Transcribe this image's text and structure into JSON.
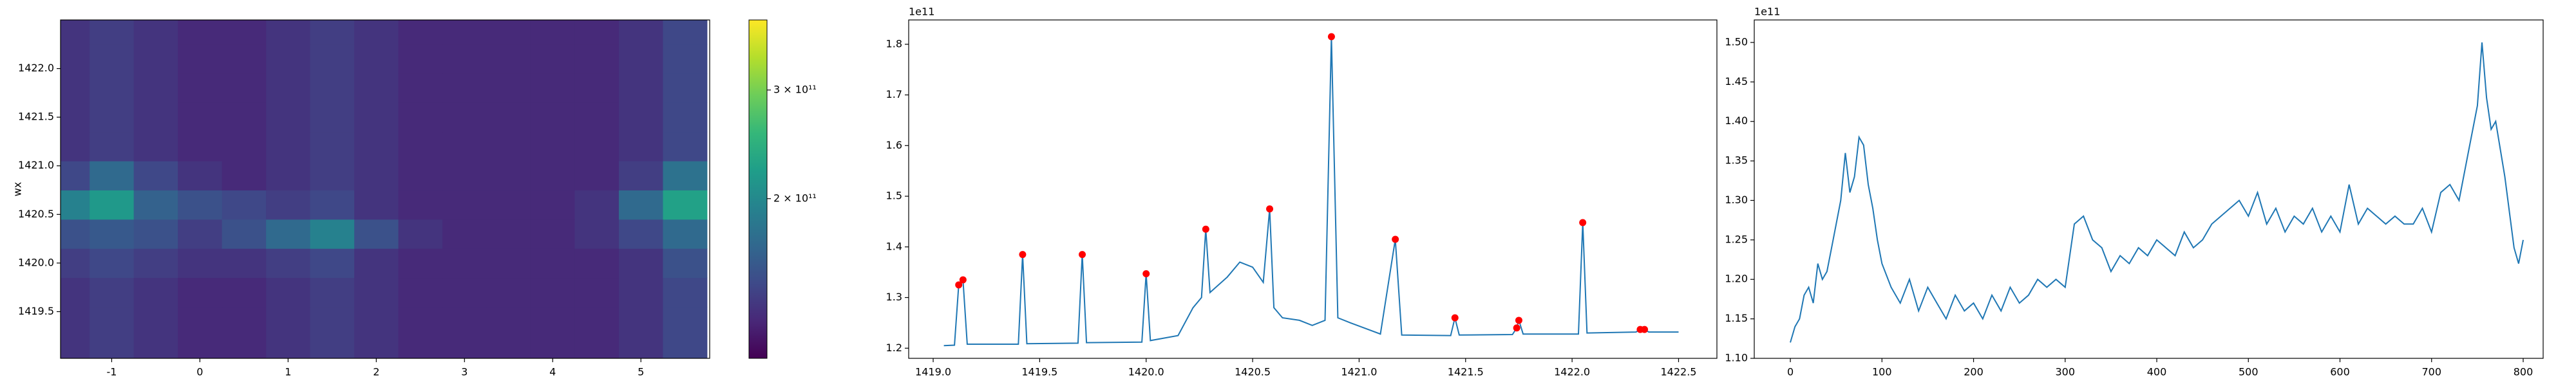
{
  "chart_data": [
    {
      "type": "heatmap",
      "ylabel": "wx",
      "colormap": "viridis",
      "xlim": [
        -1.58,
        5.78
      ],
      "ylim": [
        1419.02,
        1422.5
      ],
      "xticks": [
        -1,
        0,
        1,
        2,
        3,
        4,
        5
      ],
      "yticks": [
        1419.5,
        {
          "value": 1420.0,
          "label": "1420.0"
        },
        1420.5,
        {
          "value": 1421.0,
          "label": "1421.0"
        },
        1421.5,
        {
          "value": 1422.0,
          "label": "1422.0"
        }
      ],
      "x": [
        -1.5,
        -1.0,
        -0.5,
        0,
        0.5,
        1.0,
        1.5,
        2.0,
        2.5,
        3.0,
        3.5,
        4.0,
        4.5,
        5.0,
        5.5
      ],
      "y": [
        1419.1,
        1419.4,
        1419.7,
        1420.0,
        1420.3,
        1420.6,
        1420.9,
        1421.2,
        1421.5,
        1421.8,
        1422.1,
        1422.4
      ],
      "values": [
        [
          100000000000.0,
          110000000000.0,
          100000000000.0,
          90000000000.0,
          90000000000.0,
          100000000000.0,
          110000000000.0,
          100000000000.0,
          90000000000.0,
          90000000000.0,
          90000000000.0,
          90000000000.0,
          90000000000.0,
          100000000000.0,
          120000000000.0
        ],
        [
          100000000000.0,
          110000000000.0,
          100000000000.0,
          90000000000.0,
          90000000000.0,
          100000000000.0,
          110000000000.0,
          100000000000.0,
          90000000000.0,
          90000000000.0,
          90000000000.0,
          90000000000.0,
          90000000000.0,
          100000000000.0,
          120000000000.0
        ],
        [
          100000000000.0,
          110000000000.0,
          100000000000.0,
          90000000000.0,
          90000000000.0,
          100000000000.0,
          110000000000.0,
          100000000000.0,
          90000000000.0,
          90000000000.0,
          90000000000.0,
          90000000000.0,
          90000000000.0,
          100000000000.0,
          120000000000.0
        ],
        [
          110000000000.0,
          120000000000.0,
          110000000000.0,
          100000000000.0,
          100000000000.0,
          110000000000.0,
          120000000000.0,
          100000000000.0,
          90000000000.0,
          90000000000.0,
          90000000000.0,
          90000000000.0,
          90000000000.0,
          100000000000.0,
          130000000000.0
        ],
        [
          130000000000.0,
          140000000000.0,
          130000000000.0,
          110000000000.0,
          130000000000.0,
          160000000000.0,
          190000000000.0,
          130000000000.0,
          100000000000.0,
          90000000000.0,
          90000000000.0,
          90000000000.0,
          100000000000.0,
          120000000000.0,
          160000000000.0
        ],
        [
          190000000000.0,
          220000000000.0,
          150000000000.0,
          130000000000.0,
          120000000000.0,
          110000000000.0,
          120000000000.0,
          100000000000.0,
          90000000000.0,
          90000000000.0,
          90000000000.0,
          90000000000.0,
          100000000000.0,
          160000000000.0,
          230000000000.0
        ],
        [
          120000000000.0,
          160000000000.0,
          120000000000.0,
          100000000000.0,
          90000000000.0,
          100000000000.0,
          110000000000.0,
          100000000000.0,
          90000000000.0,
          90000000000.0,
          90000000000.0,
          90000000000.0,
          90000000000.0,
          110000000000.0,
          170000000000.0
        ],
        [
          100000000000.0,
          110000000000.0,
          100000000000.0,
          90000000000.0,
          90000000000.0,
          100000000000.0,
          110000000000.0,
          100000000000.0,
          90000000000.0,
          90000000000.0,
          90000000000.0,
          90000000000.0,
          90000000000.0,
          100000000000.0,
          120000000000.0
        ],
        [
          100000000000.0,
          110000000000.0,
          100000000000.0,
          90000000000.0,
          90000000000.0,
          100000000000.0,
          110000000000.0,
          100000000000.0,
          90000000000.0,
          90000000000.0,
          90000000000.0,
          90000000000.0,
          90000000000.0,
          100000000000.0,
          120000000000.0
        ],
        [
          100000000000.0,
          110000000000.0,
          100000000000.0,
          90000000000.0,
          90000000000.0,
          100000000000.0,
          110000000000.0,
          100000000000.0,
          90000000000.0,
          90000000000.0,
          90000000000.0,
          90000000000.0,
          90000000000.0,
          100000000000.0,
          120000000000.0
        ],
        [
          100000000000.0,
          110000000000.0,
          100000000000.0,
          90000000000.0,
          90000000000.0,
          100000000000.0,
          110000000000.0,
          100000000000.0,
          90000000000.0,
          90000000000.0,
          90000000000.0,
          90000000000.0,
          90000000000.0,
          100000000000.0,
          120000000000.0
        ],
        [
          100000000000.0,
          110000000000.0,
          100000000000.0,
          90000000000.0,
          90000000000.0,
          100000000000.0,
          110000000000.0,
          100000000000.0,
          90000000000.0,
          90000000000.0,
          90000000000.0,
          90000000000.0,
          90000000000.0,
          100000000000.0,
          120000000000.0
        ]
      ],
      "colorbar": {
        "clim": [
          53000000000.0,
          364500000000.0
        ],
        "ticks": [
          {
            "value": 200000000000.0,
            "label": "2 × 10¹¹"
          },
          {
            "value": 300000000000.0,
            "label": "3 × 10¹¹"
          }
        ]
      }
    },
    {
      "type": "line",
      "offset_text": "1e11",
      "color": "#1f77b4",
      "xlim": [
        1418.885,
        1422.68
      ],
      "ylim": [
        1.18,
        1.848
      ],
      "xticks": [
        {
          "value": 1419.0,
          "label": "1419.0"
        },
        1419.5,
        {
          "value": 1420.0,
          "label": "1420.0"
        },
        1420.5,
        {
          "value": 1421.0,
          "label": "1421.0"
        },
        1421.5,
        {
          "value": 1422.0,
          "label": "1422.0"
        },
        1422.5
      ],
      "yticks": [
        1.2,
        1.3,
        1.4,
        1.5,
        1.6,
        1.7,
        1.8
      ],
      "x": [
        1419.05,
        1419.1,
        1419.12,
        1419.14,
        1419.16,
        1419.4,
        1419.42,
        1419.44,
        1419.68,
        1419.7,
        1419.72,
        1419.98,
        1420.0,
        1420.02,
        1420.15,
        1420.22,
        1420.26,
        1420.28,
        1420.3,
        1420.38,
        1420.44,
        1420.5,
        1420.55,
        1420.58,
        1420.6,
        1420.64,
        1420.72,
        1420.78,
        1420.84,
        1420.87,
        1420.9,
        1420.96,
        1421.1,
        1421.17,
        1421.2,
        1421.43,
        1421.45,
        1421.47,
        1421.72,
        1421.74,
        1421.75,
        1421.77,
        1422.03,
        1422.05,
        1422.07,
        1422.3,
        1422.32,
        1422.34,
        1422.36,
        1422.5
      ],
      "values": [
        1.205,
        1.206,
        1.325,
        1.335,
        1.208,
        1.208,
        1.385,
        1.209,
        1.21,
        1.385,
        1.211,
        1.212,
        1.347,
        1.215,
        1.225,
        1.28,
        1.3,
        1.435,
        1.31,
        1.34,
        1.37,
        1.36,
        1.33,
        1.475,
        1.28,
        1.26,
        1.255,
        1.245,
        1.255,
        1.815,
        1.26,
        1.25,
        1.228,
        1.415,
        1.226,
        1.225,
        1.26,
        1.226,
        1.227,
        1.24,
        1.255,
        1.228,
        1.228,
        1.448,
        1.23,
        1.232,
        1.237,
        1.237,
        1.232,
        1.232
      ],
      "peaks": {
        "color": "#ff0000",
        "x": [
          1419.12,
          1419.14,
          1419.42,
          1419.7,
          1420.0,
          1420.28,
          1420.58,
          1420.87,
          1421.17,
          1421.45,
          1421.74,
          1421.75,
          1422.05,
          1422.32,
          1422.34
        ],
        "values": [
          1.325,
          1.335,
          1.385,
          1.385,
          1.347,
          1.435,
          1.475,
          1.815,
          1.415,
          1.26,
          1.24,
          1.255,
          1.448,
          1.237,
          1.237
        ]
      }
    },
    {
      "type": "line",
      "offset_text": "1e11",
      "color": "#1f77b4",
      "xlim": [
        -39.4,
        821.8
      ],
      "ylim": [
        1.1,
        1.5285
      ],
      "xticks": [
        0,
        100,
        200,
        300,
        400,
        500,
        600,
        700,
        800
      ],
      "yticks": [
        {
          "value": 1.1,
          "label": "1.10"
        },
        1.15,
        {
          "value": 1.2,
          "label": "1.20"
        },
        1.25,
        {
          "value": 1.3,
          "label": "1.30"
        },
        1.35,
        {
          "value": 1.4,
          "label": "1.40"
        },
        1.45,
        {
          "value": 1.5,
          "label": "1.50"
        }
      ],
      "x": [
        0,
        5,
        10,
        15,
        20,
        25,
        30,
        35,
        40,
        45,
        50,
        55,
        60,
        65,
        70,
        75,
        80,
        85,
        90,
        95,
        100,
        110,
        120,
        130,
        140,
        150,
        160,
        170,
        180,
        190,
        200,
        210,
        220,
        230,
        240,
        250,
        260,
        270,
        280,
        290,
        300,
        310,
        320,
        330,
        340,
        350,
        360,
        370,
        380,
        390,
        400,
        410,
        420,
        430,
        440,
        450,
        460,
        470,
        480,
        490,
        500,
        510,
        520,
        530,
        540,
        550,
        560,
        570,
        580,
        590,
        600,
        610,
        620,
        630,
        640,
        650,
        660,
        670,
        680,
        690,
        700,
        710,
        720,
        730,
        740,
        750,
        755,
        760,
        765,
        770,
        780,
        790,
        795,
        800
      ],
      "values": [
        1.12,
        1.14,
        1.15,
        1.18,
        1.19,
        1.17,
        1.22,
        1.2,
        1.21,
        1.24,
        1.27,
        1.3,
        1.36,
        1.31,
        1.33,
        1.38,
        1.37,
        1.32,
        1.29,
        1.25,
        1.22,
        1.19,
        1.17,
        1.2,
        1.16,
        1.19,
        1.17,
        1.15,
        1.18,
        1.16,
        1.17,
        1.15,
        1.18,
        1.16,
        1.19,
        1.17,
        1.18,
        1.2,
        1.19,
        1.2,
        1.19,
        1.27,
        1.28,
        1.25,
        1.24,
        1.21,
        1.23,
        1.22,
        1.24,
        1.23,
        1.25,
        1.24,
        1.23,
        1.26,
        1.24,
        1.25,
        1.27,
        1.28,
        1.29,
        1.3,
        1.28,
        1.31,
        1.27,
        1.29,
        1.26,
        1.28,
        1.27,
        1.29,
        1.26,
        1.28,
        1.26,
        1.32,
        1.27,
        1.29,
        1.28,
        1.27,
        1.28,
        1.27,
        1.27,
        1.29,
        1.26,
        1.31,
        1.32,
        1.3,
        1.36,
        1.42,
        1.5,
        1.43,
        1.39,
        1.4,
        1.33,
        1.24,
        1.22,
        1.25
      ]
    }
  ]
}
